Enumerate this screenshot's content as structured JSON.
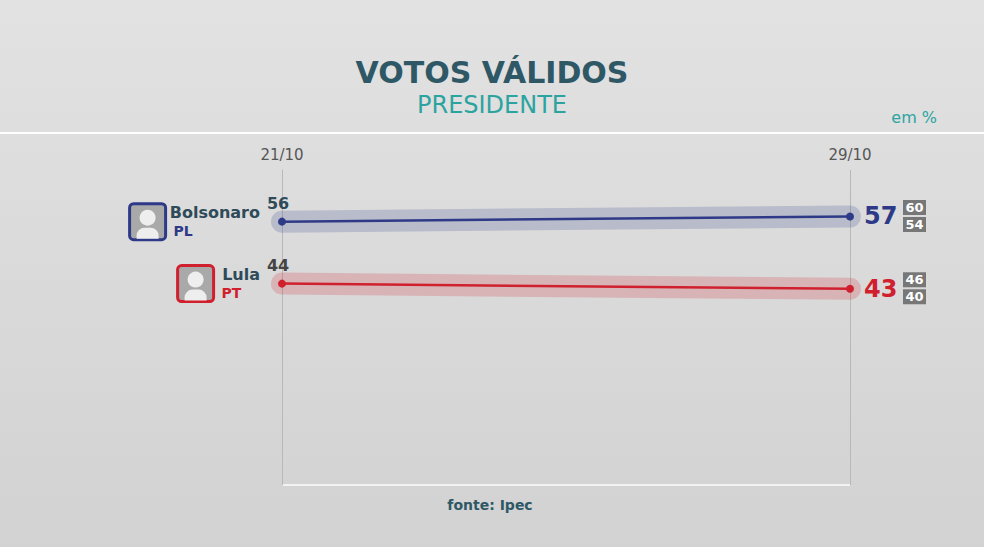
{
  "chart_data": {
    "type": "line",
    "title": "VOTOS VÁLIDOS",
    "subtitle": "PRESIDENTE",
    "unit_note": "em %",
    "source": "fonte: Ipec",
    "categories": [
      "21/10",
      "29/10"
    ],
    "series": [
      {
        "name": "Bolsonaro",
        "party": "PL",
        "color": "#2e3a87",
        "values": [
          56,
          57
        ],
        "bounds": {
          "high": 60,
          "low": 54
        }
      },
      {
        "name": "Lula",
        "party": "PT",
        "color": "#d0202e",
        "values": [
          44,
          43
        ],
        "bounds": {
          "high": 46,
          "low": 40
        }
      }
    ],
    "ylim": [
      5,
      66
    ],
    "grid": true,
    "tick_labels": "x",
    "data_labels": true
  }
}
